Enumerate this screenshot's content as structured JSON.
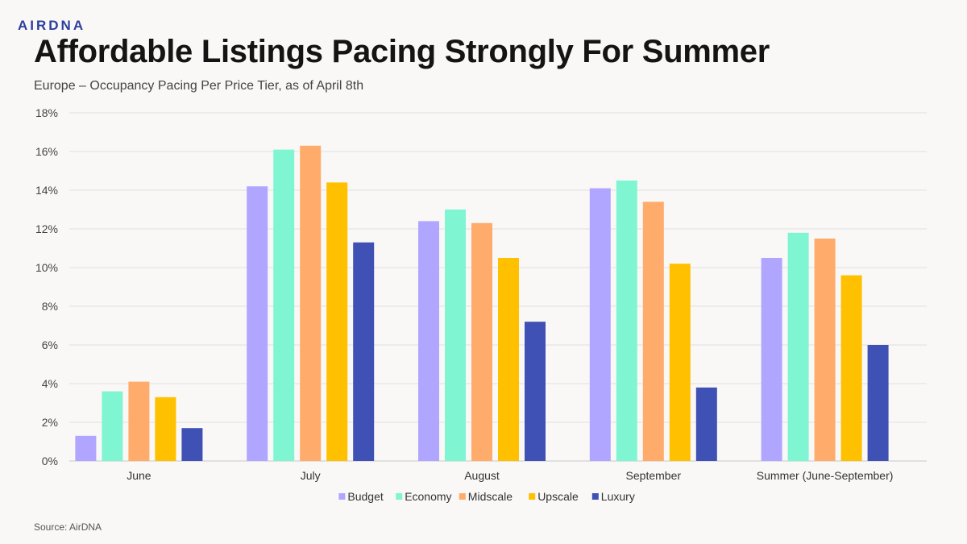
{
  "brand": {
    "logo_text": "AIRDNA"
  },
  "header": {
    "title": "Affordable Listings Pacing Strongly For Summer",
    "subtitle": "Europe – Occupancy Pacing Per Price Tier, as of April 8th"
  },
  "footer": {
    "source": "Source: AirDNA"
  },
  "chart_data": {
    "type": "bar",
    "title": "",
    "xlabel": "",
    "ylabel": "",
    "categories": [
      "June",
      "July",
      "August",
      "September",
      "Summer (June-September)"
    ],
    "ylim": [
      0,
      18
    ],
    "yticks": [
      0,
      2,
      4,
      6,
      8,
      10,
      12,
      14,
      16,
      18
    ],
    "ytick_labels": [
      "0%",
      "2%",
      "4%",
      "6%",
      "8%",
      "10%",
      "12%",
      "14%",
      "16%",
      "18%"
    ],
    "grid": true,
    "legend_position": "bottom-center",
    "series": [
      {
        "name": "Budget",
        "color": "#b0a6ff",
        "values": [
          1.3,
          14.2,
          12.4,
          14.1,
          10.5
        ]
      },
      {
        "name": "Economy",
        "color": "#7ff5d2",
        "values": [
          3.6,
          16.1,
          13.0,
          14.5,
          11.8
        ]
      },
      {
        "name": "Midscale",
        "color": "#ffab6b",
        "values": [
          4.1,
          16.3,
          12.3,
          13.4,
          11.5
        ]
      },
      {
        "name": "Upscale",
        "color": "#ffc000",
        "values": [
          3.3,
          14.4,
          10.5,
          10.2,
          9.6
        ]
      },
      {
        "name": "Luxury",
        "color": "#3f51b5",
        "values": [
          1.7,
          11.3,
          7.2,
          3.8,
          6.0
        ]
      }
    ]
  }
}
